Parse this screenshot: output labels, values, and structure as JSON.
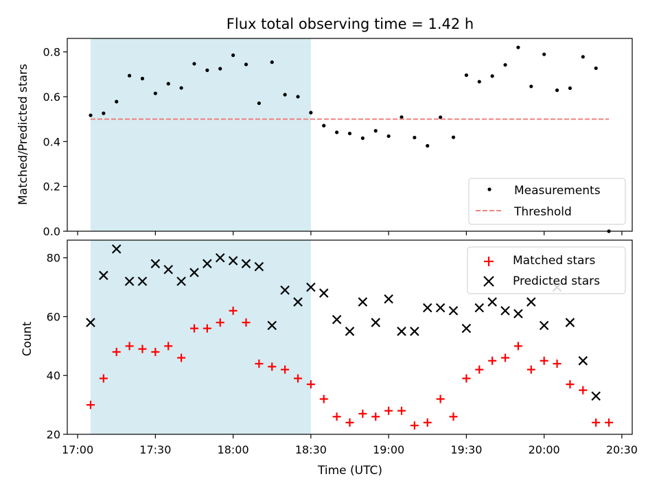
{
  "chart_data": [
    {
      "type": "scatter",
      "title": "Flux total observing time = 1.42 h",
      "ylabel": "Matched/Predicted stars",
      "xlabel": "",
      "x_ticks": [
        "17:00",
        "17:30",
        "18:00",
        "18:30",
        "19:00",
        "19:30",
        "20:00",
        "20:30"
      ],
      "x_tick_labels_visible": false,
      "xlim": [
        "16:56",
        "20:34"
      ],
      "ylim": [
        0,
        0.86
      ],
      "y_ticks": [
        "0.0",
        "0.2",
        "0.4",
        "0.6",
        "0.8"
      ],
      "grid": false,
      "legend_position": "lower right",
      "highlight_span": {
        "start": "17:05",
        "end": "18:30",
        "color": "#add8e6"
      },
      "series": [
        {
          "name": "Measurements",
          "marker": "dot",
          "color": "#000000",
          "x": [
            "17:05",
            "17:10",
            "17:15",
            "17:20",
            "17:25",
            "17:30",
            "17:35",
            "17:40",
            "17:45",
            "17:50",
            "17:55",
            "18:00",
            "18:05",
            "18:10",
            "18:15",
            "18:20",
            "18:25",
            "18:30",
            "18:35",
            "18:40",
            "18:45",
            "18:50",
            "18:55",
            "19:00",
            "19:05",
            "19:10",
            "19:15",
            "19:20",
            "19:25",
            "19:30",
            "19:35",
            "19:40",
            "19:45",
            "19:50",
            "19:55",
            "20:00",
            "20:05",
            "20:10",
            "20:15",
            "20:20",
            "20:25"
          ],
          "y": [
            0.517,
            0.526,
            0.578,
            0.694,
            0.681,
            0.615,
            0.658,
            0.639,
            0.747,
            0.718,
            0.725,
            0.785,
            0.744,
            0.571,
            0.754,
            0.609,
            0.6,
            0.529,
            0.471,
            0.441,
            0.436,
            0.415,
            0.448,
            0.424,
            0.509,
            0.418,
            0.381,
            0.508,
            0.419,
            0.696,
            0.667,
            0.692,
            0.742,
            0.82,
            0.646,
            0.789,
            0.629,
            0.638,
            0.778,
            0.727,
            0.0
          ]
        },
        {
          "name": "Threshold",
          "style": "dashed",
          "color": "#f08080",
          "x": [
            "17:05",
            "20:25"
          ],
          "y": [
            0.5,
            0.5
          ]
        }
      ]
    },
    {
      "type": "scatter",
      "title": "",
      "xlabel": "Time (UTC)",
      "ylabel": "Count",
      "x_ticks": [
        "17:00",
        "17:30",
        "18:00",
        "18:30",
        "19:00",
        "19:30",
        "20:00",
        "20:30"
      ],
      "xlim": [
        "16:56",
        "20:34"
      ],
      "ylim": [
        20,
        86
      ],
      "y_ticks": [
        "20",
        "40",
        "60",
        "80"
      ],
      "grid": false,
      "legend_position": "upper right",
      "highlight_span": {
        "start": "17:05",
        "end": "18:30",
        "color": "#add8e6"
      },
      "series": [
        {
          "name": "Matched stars",
          "marker": "plus",
          "color": "#ff0000",
          "x": [
            "17:05",
            "17:10",
            "17:15",
            "17:20",
            "17:25",
            "17:30",
            "17:35",
            "17:40",
            "17:45",
            "17:50",
            "17:55",
            "18:00",
            "18:05",
            "18:10",
            "18:15",
            "18:20",
            "18:25",
            "18:30",
            "18:35",
            "18:40",
            "18:45",
            "18:50",
            "18:55",
            "19:00",
            "19:05",
            "19:10",
            "19:15",
            "19:20",
            "19:25",
            "19:30",
            "19:35",
            "19:40",
            "19:45",
            "19:50",
            "19:55",
            "20:00",
            "20:05",
            "20:10",
            "20:15",
            "20:20",
            "20:25"
          ],
          "y": [
            30,
            39,
            48,
            50,
            49,
            48,
            50,
            46,
            56,
            56,
            58,
            62,
            58,
            44,
            43,
            42,
            39,
            37,
            32,
            26,
            24,
            27,
            26,
            28,
            28,
            23,
            24,
            32,
            26,
            39,
            42,
            45,
            46,
            50,
            42,
            45,
            44,
            37,
            35,
            24,
            24
          ]
        },
        {
          "name": "Predicted stars",
          "marker": "x",
          "color": "#000000",
          "x": [
            "17:05",
            "17:10",
            "17:15",
            "17:20",
            "17:25",
            "17:30",
            "17:35",
            "17:40",
            "17:45",
            "17:50",
            "17:55",
            "18:00",
            "18:05",
            "18:10",
            "18:15",
            "18:20",
            "18:25",
            "18:30",
            "18:35",
            "18:40",
            "18:45",
            "18:50",
            "18:55",
            "19:00",
            "19:05",
            "19:10",
            "19:15",
            "19:20",
            "19:25",
            "19:30",
            "19:35",
            "19:40",
            "19:45",
            "19:50",
            "19:55",
            "20:00",
            "20:05",
            "20:10",
            "20:15",
            "20:20"
          ],
          "y": [
            58,
            74,
            83,
            72,
            72,
            78,
            76,
            72,
            75,
            78,
            80,
            79,
            78,
            77,
            57,
            69,
            65,
            70,
            68,
            59,
            55,
            65,
            58,
            66,
            55,
            55,
            63,
            63,
            62,
            56,
            63,
            65,
            62,
            61,
            65,
            57,
            70,
            58,
            45,
            33
          ]
        }
      ]
    }
  ]
}
